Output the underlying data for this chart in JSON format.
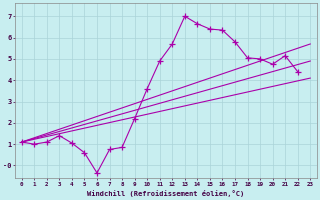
{
  "xlabel": "Windchill (Refroidissement éolien,°C)",
  "bg_color": "#c8eef0",
  "grid_color": "#aad4d8",
  "line_color": "#aa00aa",
  "xlim": [
    -0.5,
    23.5
  ],
  "ylim": [
    -0.6,
    7.6
  ],
  "xticks": [
    0,
    1,
    2,
    3,
    4,
    5,
    6,
    7,
    8,
    9,
    10,
    11,
    12,
    13,
    14,
    15,
    16,
    17,
    18,
    19,
    20,
    21,
    22,
    23
  ],
  "yticks": [
    0,
    1,
    2,
    3,
    4,
    5,
    6,
    7
  ],
  "ytick_labels": [
    "-0",
    "1",
    "2",
    "3",
    "4",
    "5",
    "6",
    "7"
  ],
  "jagged_x": [
    0,
    1,
    2,
    3,
    4,
    5,
    6,
    7,
    8,
    9,
    10,
    11,
    12,
    13,
    14,
    15,
    16,
    17,
    18,
    19,
    20,
    21,
    22
  ],
  "jagged_y": [
    1.1,
    1.0,
    1.1,
    1.4,
    1.05,
    0.6,
    -0.35,
    0.75,
    0.85,
    2.2,
    3.6,
    4.9,
    5.7,
    7.0,
    6.65,
    6.4,
    6.35,
    5.8,
    5.05,
    5.0,
    4.75,
    5.15,
    4.4
  ],
  "line2_x": [
    0,
    23
  ],
  "line2_y": [
    1.1,
    5.7
  ],
  "line3_x": [
    0,
    23
  ],
  "line3_y": [
    1.1,
    4.9
  ],
  "line4_x": [
    0,
    23
  ],
  "line4_y": [
    1.1,
    4.1
  ]
}
